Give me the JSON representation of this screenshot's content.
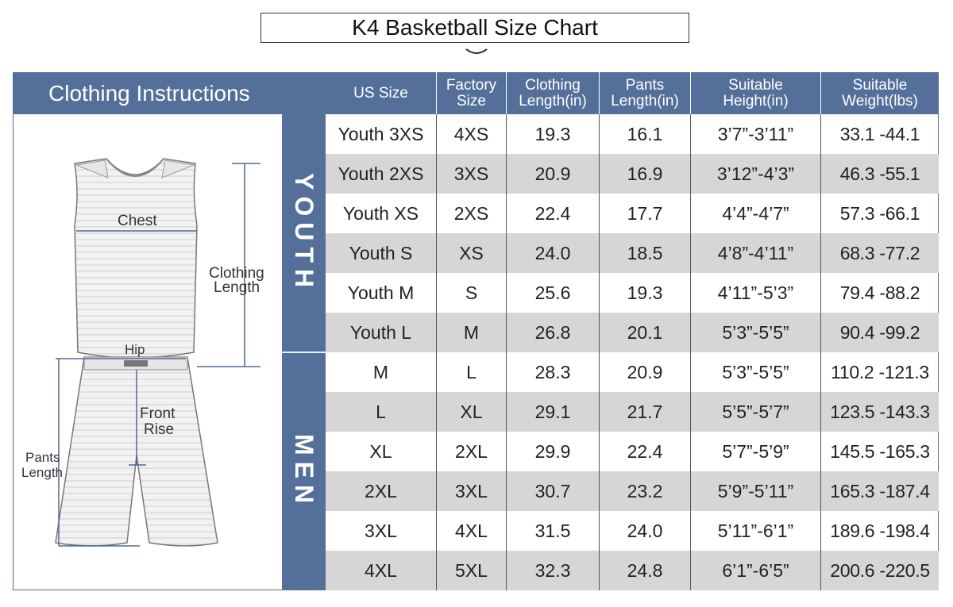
{
  "title": "K4 Basketball Size Chart",
  "left_header": "Clothing Instructions",
  "columns": [
    {
      "line1": "US Size",
      "line2": ""
    },
    {
      "line1": "Factory",
      "line2": "Size"
    },
    {
      "line1": "Clothing",
      "line2": "Length(in)"
    },
    {
      "line1": "Pants",
      "line2": "Length(in)"
    },
    {
      "line1": "Suitable",
      "line2": "Height(in)"
    },
    {
      "line1": "Suitable",
      "line2": "Weight(lbs)"
    }
  ],
  "groups": {
    "youth": "YOUTH",
    "men": "MEN"
  },
  "illustration_labels": {
    "chest": "Chest",
    "clothing_length_1": "Clothing",
    "clothing_length_2": "Length",
    "hip": "Hip",
    "front_rise_1": "Front",
    "front_rise_2": "Rise",
    "pants_length_1": "Pants",
    "pants_length_2": "Length"
  },
  "rows": [
    {
      "us": "Youth 3XS",
      "factory": "4XS",
      "clothing": "19.3",
      "pants": "16.1",
      "height": "3’7”-3’11”",
      "weight": "33.1 -44.1"
    },
    {
      "us": "Youth 2XS",
      "factory": "3XS",
      "clothing": "20.9",
      "pants": "16.9",
      "height": "3’12”-4’3”",
      "weight": "46.3 -55.1"
    },
    {
      "us": "Youth XS",
      "factory": "2XS",
      "clothing": "22.4",
      "pants": "17.7",
      "height": "4’4”-4’7”",
      "weight": "57.3 -66.1"
    },
    {
      "us": "Youth S",
      "factory": "XS",
      "clothing": "24.0",
      "pants": "18.5",
      "height": "4’8”-4’11”",
      "weight": "68.3 -77.2"
    },
    {
      "us": "Youth M",
      "factory": "S",
      "clothing": "25.6",
      "pants": "19.3",
      "height": "4’11”-5’3”",
      "weight": "79.4 -88.2"
    },
    {
      "us": "Youth L",
      "factory": "M",
      "clothing": "26.8",
      "pants": "20.1",
      "height": "5’3”-5’5”",
      "weight": "90.4 -99.2"
    },
    {
      "us": "M",
      "factory": "L",
      "clothing": "28.3",
      "pants": "20.9",
      "height": "5’3”-5’5”",
      "weight": "110.2 -121.3"
    },
    {
      "us": "L",
      "factory": "XL",
      "clothing": "29.1",
      "pants": "21.7",
      "height": "5’5”-5’7”",
      "weight": "123.5 -143.3"
    },
    {
      "us": "XL",
      "factory": "2XL",
      "clothing": "29.9",
      "pants": "22.4",
      "height": "5’7”-5’9”",
      "weight": "145.5 -165.3"
    },
    {
      "us": "2XL",
      "factory": "3XL",
      "clothing": "30.7",
      "pants": "23.2",
      "height": "5’9”-5’11”",
      "weight": "165.3 -187.4"
    },
    {
      "us": "3XL",
      "factory": "4XL",
      "clothing": "31.5",
      "pants": "24.0",
      "height": "5’11”-6’1”",
      "weight": "189.6 -198.4"
    },
    {
      "us": "4XL",
      "factory": "5XL",
      "clothing": "32.3",
      "pants": "24.8",
      "height": "6’1”-6’5”",
      "weight": "200.6 -220.5"
    }
  ],
  "colors": {
    "header": "#54709a",
    "alt_row": "#d6d6d6",
    "border": "#555555"
  }
}
